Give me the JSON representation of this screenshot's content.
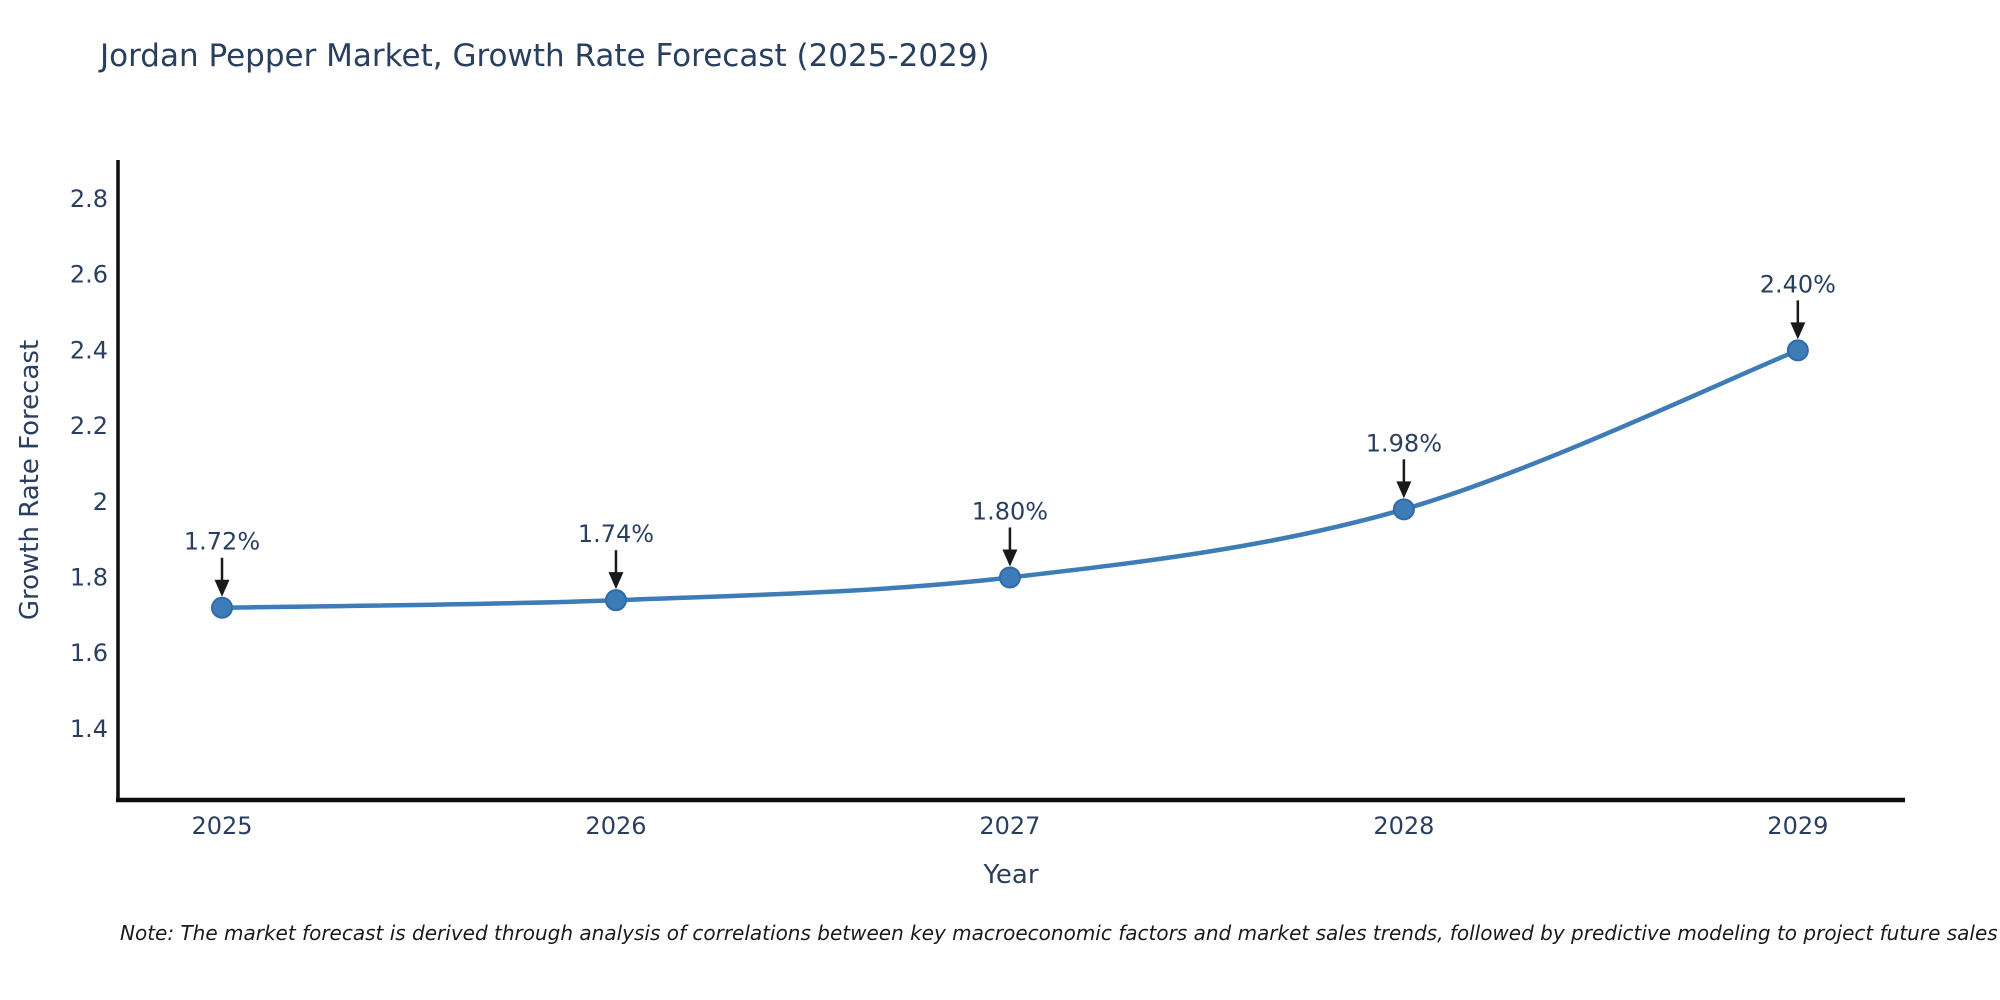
{
  "title": "Jordan Pepper Market, Growth Rate Forecast (2025-2029)",
  "note": "Note: The market forecast is derived through analysis of correlations between key macroeconomic factors and market sales trends, followed by predictive modeling to project future sales",
  "chart_data": {
    "type": "line",
    "title": "Jordan Pepper Market, Growth Rate Forecast (2025-2029)",
    "x": [
      2025,
      2026,
      2027,
      2028,
      2029
    ],
    "series": [
      {
        "name": "Growth Rate Forecast",
        "values": [
          1.72,
          1.74,
          1.8,
          1.98,
          2.4
        ]
      }
    ],
    "point_labels": [
      "1.72%",
      "1.74%",
      "1.80%",
      "1.98%",
      "2.40%"
    ],
    "xlabel": "Year",
    "ylabel": "Growth Rate Forecast",
    "xtick_labels": [
      "2025",
      "2026",
      "2027",
      "2028",
      "2029"
    ],
    "ytick_values": [
      1.4,
      1.6,
      1.8,
      2,
      2.2,
      2.4,
      2.6,
      2.8
    ],
    "ytick_labels": [
      "1.4",
      "1.6",
      "1.8",
      "2",
      "2.2",
      "2.4",
      "2.6",
      "2.8"
    ],
    "xlim": [
      2024.736,
      2029.272
    ],
    "ylim": [
      1.212,
      2.903
    ],
    "grid": false,
    "legend": "none",
    "line_shape": "spline",
    "annotation_arrows": true,
    "colors": {
      "line": "#3e7cb8",
      "marker_fill": "#3e7cb8",
      "marker_edge": "#2f6ba8",
      "arrow": "#1a1a1a",
      "axis": "#0d0d0d",
      "text": "#2a3f5f",
      "note_text": "#1a1a1a"
    }
  }
}
